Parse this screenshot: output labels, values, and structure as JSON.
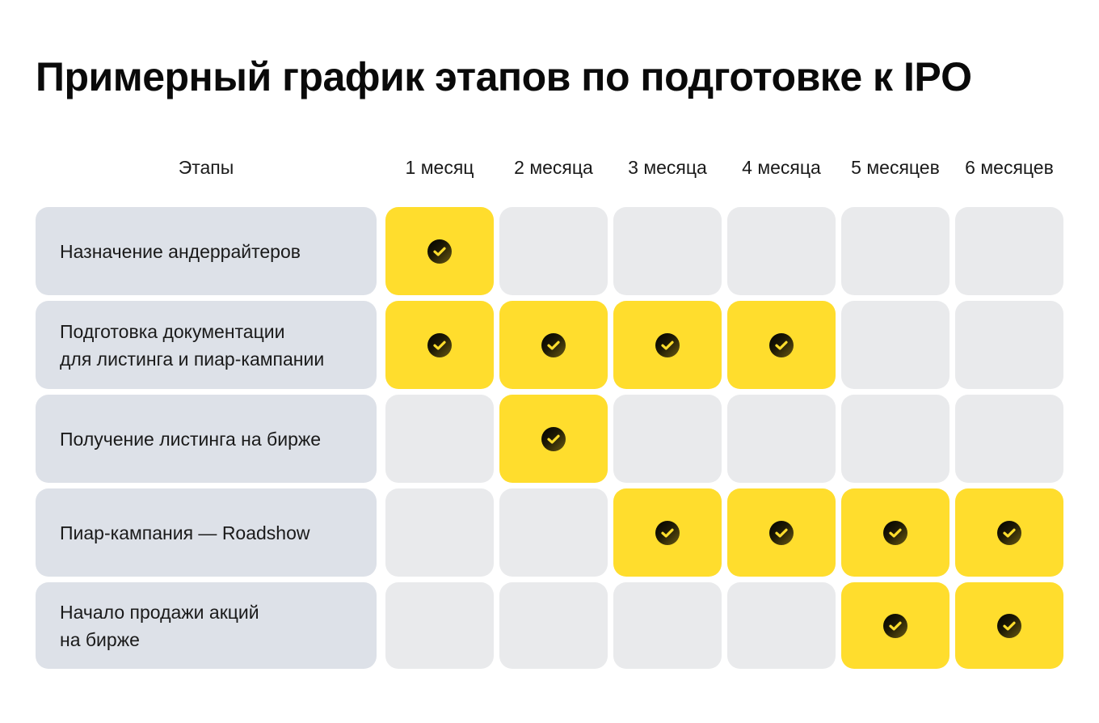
{
  "title": "Примерный график этапов по подготовке к IPO",
  "header": {
    "stages_label": "Этапы",
    "months": [
      "1 месяц",
      "2 месяца",
      "3 месяца",
      "4 месяца",
      "5 месяцев",
      "6 месяцев"
    ]
  },
  "rows": [
    {
      "label_lines": [
        "Назначение андеррайтеров"
      ],
      "active": [
        true,
        false,
        false,
        false,
        false,
        false
      ]
    },
    {
      "label_lines": [
        "Подготовка документации",
        "для листинга и пиар-кампании"
      ],
      "active": [
        true,
        true,
        true,
        true,
        false,
        false
      ]
    },
    {
      "label_lines": [
        "Получение листинга на бирже"
      ],
      "active": [
        false,
        true,
        false,
        false,
        false,
        false
      ]
    },
    {
      "label_lines": [
        "Пиар-кампания — Roadshow"
      ],
      "active": [
        false,
        false,
        true,
        true,
        true,
        true
      ]
    },
    {
      "label_lines": [
        "Начало продажи акций",
        "на бирже"
      ],
      "active": [
        false,
        false,
        false,
        false,
        true,
        true
      ]
    }
  ],
  "colors": {
    "active_cell": "#ffdd2d",
    "inactive_cell": "#e9eaec",
    "label_cell": "#dde1e8",
    "check_icon": "#ffdd2d"
  },
  "icons": {
    "active_marker": "check-circle-icon"
  }
}
